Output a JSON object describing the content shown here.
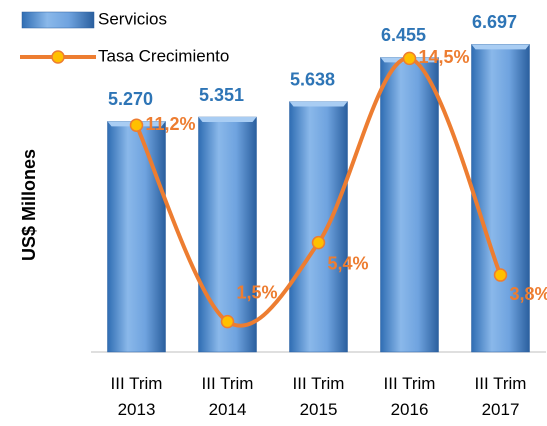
{
  "chart_data": {
    "type": "bar-line",
    "y_label": "US$ Millones",
    "categories": [
      "III Trim 2013",
      "III Trim 2014",
      "III Trim 2015",
      "III Trim 2016",
      "III Trim 2017"
    ],
    "series": [
      {
        "name": "Servicios",
        "type": "bar",
        "color": "#4f8fd6",
        "values": [
          5270,
          5351,
          5638,
          6455,
          6697
        ],
        "value_labels": [
          "5.270",
          "5.351",
          "5.638",
          "6.455",
          "6.697"
        ]
      },
      {
        "name": "Tasa Crecimiento",
        "type": "line",
        "axis": "y2",
        "color": "#ed7d31",
        "values": [
          11.2,
          1.5,
          5.4,
          14.5,
          3.8
        ],
        "value_labels": [
          "11,2%",
          "1,5%",
          "5,4%",
          "14,5%",
          "3,8%"
        ]
      }
    ],
    "ylim": [
      1000,
      7000
    ],
    "y2lim": [
      0,
      16
    ],
    "grid": false,
    "legend": "top-left"
  }
}
